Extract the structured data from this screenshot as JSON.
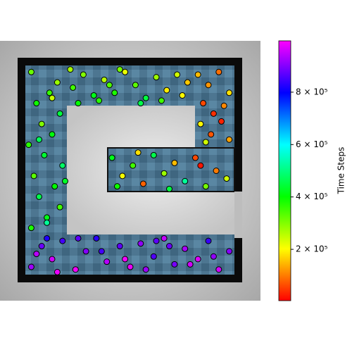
{
  "chart_data": {
    "type": "scatter",
    "xlim": [
      0,
      10
    ],
    "ylim": [
      0,
      10
    ],
    "x": [
      1.2,
      1.6,
      2.0,
      2.4,
      2.9,
      3.3,
      3.7,
      4.1,
      4.6,
      5.0,
      5.4,
      5.9,
      6.3,
      6.7,
      7.1,
      7.6,
      8.0,
      8.4,
      8.8,
      1.4,
      2.2,
      3.0,
      3.9,
      4.8,
      5.6,
      6.5,
      7.3,
      8.2,
      1.8,
      6.0,
      1.2,
      1.8,
      2.3,
      1.5,
      2.1,
      1.3,
      2.4,
      1.7,
      1.1,
      2.0,
      1.6,
      2.3,
      1.4,
      1.9,
      2.2,
      1.2,
      1.8,
      2.5,
      1.5,
      2.0,
      2.8,
      3.2,
      3.6,
      4.0,
      4.4,
      4.8,
      5.2,
      5.6,
      6.0,
      6.4,
      6.8,
      7.2,
      3.0,
      3.8,
      4.6,
      5.4,
      6.2,
      7.0,
      2.7,
      4.2,
      7.6,
      8.0,
      8.4,
      8.8,
      7.8,
      8.2,
      8.6,
      7.7,
      8.1,
      8.5,
      8.8,
      7.9,
      4.3,
      4.7,
      5.1,
      5.5,
      5.9,
      6.3,
      6.7,
      7.1,
      7.5,
      7.9,
      8.3,
      8.7,
      4.5,
      5.3,
      6.5,
      7.7
    ],
    "y": [
      1.3,
      2.1,
      1.6,
      2.3,
      1.2,
      1.9,
      2.4,
      1.5,
      2.1,
      1.3,
      2.2,
      1.7,
      2.4,
      1.4,
      2.0,
      1.6,
      2.3,
      1.2,
      1.9,
      1.8,
      1.1,
      2.4,
      1.9,
      1.6,
      1.2,
      2.1,
      1.4,
      1.7,
      2.4,
      2.3,
      2.8,
      3.2,
      3.6,
      4.0,
      4.4,
      4.8,
      5.2,
      5.6,
      6.0,
      6.4,
      6.8,
      7.2,
      7.6,
      8.0,
      8.4,
      8.8,
      3.0,
      4.6,
      6.2,
      7.8,
      8.2,
      8.7,
      7.9,
      8.5,
      8.0,
      8.8,
      8.3,
      7.8,
      8.6,
      8.1,
      8.7,
      8.4,
      7.6,
      7.7,
      8.9,
      7.6,
      7.7,
      7.9,
      8.9,
      8.3,
      8.7,
      8.3,
      8.8,
      8.0,
      7.6,
      7.2,
      7.5,
      6.8,
      6.4,
      6.9,
      6.2,
      6.1,
      5.5,
      4.8,
      5.2,
      4.5,
      5.6,
      4.9,
      5.3,
      4.6,
      5.5,
      4.4,
      5.0,
      4.7,
      4.4,
      5.7,
      4.3,
      5.2
    ],
    "c": [
      920000,
      880000,
      960000,
      850000,
      990000,
      900000,
      830000,
      940000,
      870000,
      980000,
      910000,
      860000,
      950000,
      890000,
      930000,
      970000,
      840000,
      960000,
      900000,
      940000,
      980000,
      870000,
      850000,
      990000,
      920000,
      880000,
      960000,
      910000,
      820000,
      870000,
      380000,
      420000,
      350000,
      460000,
      400000,
      330000,
      480000,
      440000,
      370000,
      410000,
      300000,
      450000,
      390000,
      360000,
      280000,
      320000,
      520000,
      430000,
      470000,
      250000,
      350000,
      300000,
      420000,
      260000,
      380000,
      220000,
      330000,
      450000,
      280000,
      190000,
      240000,
      160000,
      400000,
      370000,
      310000,
      460000,
      350000,
      200000,
      270000,
      340000,
      150000,
      120000,
      90000,
      180000,
      60000,
      40000,
      110000,
      200000,
      70000,
      30000,
      130000,
      240000,
      420000,
      210000,
      350000,
      80000,
      460000,
      280000,
      150000,
      520000,
      60000,
      310000,
      100000,
      240000,
      390000,
      180000,
      450000,
      20000
    ],
    "colormap": "hsv",
    "colorbar": {
      "label": "Time Steps",
      "lim": [
        4000,
        996000
      ],
      "ticks": [
        {
          "value": 200000,
          "label": "2 × 10⁵"
        },
        {
          "value": 400000,
          "label": "4 × 10⁵"
        },
        {
          "value": 600000,
          "label": "6 × 10⁵"
        },
        {
          "value": 800000,
          "label": "8 × 10⁵"
        }
      ]
    }
  }
}
